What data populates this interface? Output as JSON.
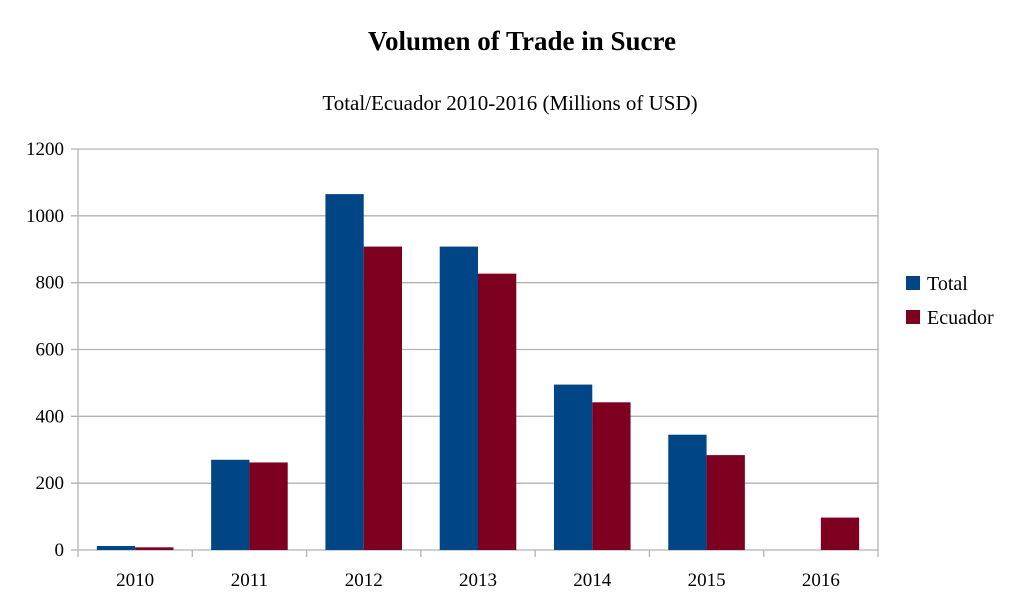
{
  "chart_data": {
    "type": "bar",
    "title": "Volumen of Trade in Sucre",
    "subtitle": "Total/Ecuador 2010-2016 (Millions of USD)",
    "xlabel": "",
    "ylabel": "",
    "categories": [
      "2010",
      "2011",
      "2012",
      "2013",
      "2014",
      "2015",
      "2016"
    ],
    "series": [
      {
        "name": "Total",
        "color": "#004586",
        "values": [
          12,
          270,
          1065,
          908,
          495,
          345,
          0
        ]
      },
      {
        "name": "Ecuador",
        "color": "#7e0021",
        "values": [
          8,
          262,
          908,
          827,
          442,
          284,
          97
        ]
      }
    ],
    "ylim": [
      0,
      1200
    ],
    "yticks": [
      0,
      200,
      400,
      600,
      800,
      1000,
      1200
    ],
    "grid": true,
    "legend_position": "right"
  }
}
